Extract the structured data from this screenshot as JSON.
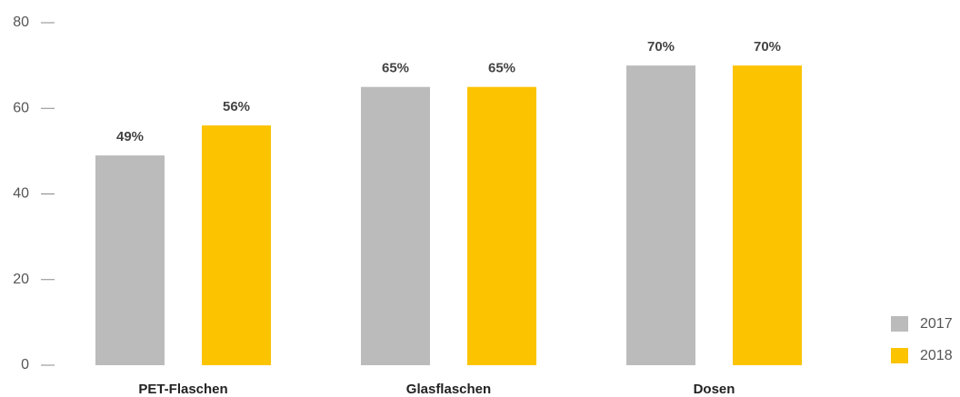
{
  "chart_data": {
    "type": "bar",
    "categories": [
      "PET-Flaschen",
      "Glasflaschen",
      "Dosen"
    ],
    "series": [
      {
        "name": "2017",
        "color": "#bbbbbb",
        "values": [
          49,
          65,
          70
        ],
        "value_labels": [
          "49%",
          "65%",
          "70%"
        ]
      },
      {
        "name": "2018",
        "color": "#fcc300",
        "values": [
          56,
          65,
          70
        ],
        "value_labels": [
          "56%",
          "65%",
          "70%"
        ]
      }
    ],
    "ylim": [
      0,
      80
    ],
    "yticks": [
      0,
      20,
      40,
      60,
      80
    ],
    "legend": "bottom-right"
  }
}
